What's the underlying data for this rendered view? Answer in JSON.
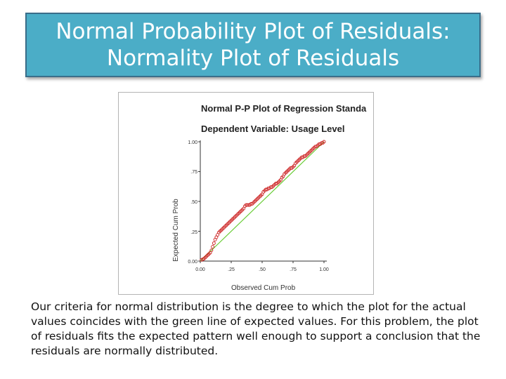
{
  "slide": {
    "title_line1": "Normal Probability Plot of Residuals:",
    "title_line2": "Normality Plot of Residuals",
    "caption": "Our criteria for normal distribution is the degree to which the plot for the actual values coincides with the green line of expected values. For this problem, the plot of residuals fits the expected pattern well enough to support a conclusion that the residuals are normally distributed."
  },
  "colors": {
    "title_bg": "#4badc7",
    "points": "#cc2222",
    "reference_line": "#66cc33"
  },
  "chart_data": {
    "type": "scatter",
    "title": "Normal P-P Plot of Regression Standa",
    "subtitle": "Dependent Variable: Usage Level",
    "xlabel": "Observed Cum Prob",
    "ylabel": "Expected Cum Prob",
    "xlim": [
      0,
      1
    ],
    "ylim": [
      0,
      1
    ],
    "xticks": [
      "0.00",
      ".25",
      ".50",
      ".75",
      "1.00"
    ],
    "yticks": [
      "0.00",
      ".25",
      ".50",
      ".75",
      "1.00"
    ],
    "grid": false,
    "reference_line": {
      "from": [
        0,
        0
      ],
      "to": [
        1,
        1
      ],
      "label": "expected values"
    },
    "series": [
      {
        "name": "Residuals",
        "points": [
          [
            0.01,
            0.01
          ],
          [
            0.02,
            0.015
          ],
          [
            0.03,
            0.02
          ],
          [
            0.04,
            0.03
          ],
          [
            0.05,
            0.04
          ],
          [
            0.06,
            0.05
          ],
          [
            0.07,
            0.06
          ],
          [
            0.08,
            0.07
          ],
          [
            0.09,
            0.09
          ],
          [
            0.1,
            0.12
          ],
          [
            0.11,
            0.15
          ],
          [
            0.12,
            0.18
          ],
          [
            0.13,
            0.2
          ],
          [
            0.14,
            0.22
          ],
          [
            0.15,
            0.24
          ],
          [
            0.16,
            0.25
          ],
          [
            0.17,
            0.26
          ],
          [
            0.18,
            0.27
          ],
          [
            0.19,
            0.28
          ],
          [
            0.2,
            0.29
          ],
          [
            0.21,
            0.3
          ],
          [
            0.22,
            0.31
          ],
          [
            0.23,
            0.32
          ],
          [
            0.24,
            0.33
          ],
          [
            0.25,
            0.34
          ],
          [
            0.26,
            0.35
          ],
          [
            0.27,
            0.36
          ],
          [
            0.28,
            0.37
          ],
          [
            0.29,
            0.38
          ],
          [
            0.3,
            0.39
          ],
          [
            0.31,
            0.4
          ],
          [
            0.32,
            0.41
          ],
          [
            0.33,
            0.42
          ],
          [
            0.34,
            0.43
          ],
          [
            0.35,
            0.44
          ],
          [
            0.36,
            0.46
          ],
          [
            0.37,
            0.47
          ],
          [
            0.38,
            0.47
          ],
          [
            0.39,
            0.47
          ],
          [
            0.4,
            0.47
          ],
          [
            0.41,
            0.48
          ],
          [
            0.42,
            0.48
          ],
          [
            0.43,
            0.49
          ],
          [
            0.44,
            0.5
          ],
          [
            0.45,
            0.51
          ],
          [
            0.46,
            0.52
          ],
          [
            0.47,
            0.53
          ],
          [
            0.48,
            0.54
          ],
          [
            0.49,
            0.55
          ],
          [
            0.5,
            0.56
          ],
          [
            0.51,
            0.58
          ],
          [
            0.52,
            0.59
          ],
          [
            0.53,
            0.6
          ],
          [
            0.54,
            0.6
          ],
          [
            0.55,
            0.61
          ],
          [
            0.56,
            0.61
          ],
          [
            0.57,
            0.62
          ],
          [
            0.58,
            0.62
          ],
          [
            0.59,
            0.63
          ],
          [
            0.6,
            0.64
          ],
          [
            0.61,
            0.65
          ],
          [
            0.62,
            0.65
          ],
          [
            0.63,
            0.66
          ],
          [
            0.64,
            0.67
          ],
          [
            0.65,
            0.68
          ],
          [
            0.66,
            0.7
          ],
          [
            0.67,
            0.71
          ],
          [
            0.68,
            0.73
          ],
          [
            0.69,
            0.74
          ],
          [
            0.7,
            0.75
          ],
          [
            0.71,
            0.76
          ],
          [
            0.72,
            0.77
          ],
          [
            0.73,
            0.78
          ],
          [
            0.74,
            0.78
          ],
          [
            0.75,
            0.79
          ],
          [
            0.76,
            0.8
          ],
          [
            0.77,
            0.82
          ],
          [
            0.78,
            0.83
          ],
          [
            0.79,
            0.84
          ],
          [
            0.8,
            0.85
          ],
          [
            0.81,
            0.86
          ],
          [
            0.82,
            0.87
          ],
          [
            0.83,
            0.87
          ],
          [
            0.84,
            0.88
          ],
          [
            0.85,
            0.88
          ],
          [
            0.86,
            0.89
          ],
          [
            0.87,
            0.9
          ],
          [
            0.88,
            0.91
          ],
          [
            0.89,
            0.92
          ],
          [
            0.9,
            0.93
          ],
          [
            0.91,
            0.94
          ],
          [
            0.92,
            0.95
          ],
          [
            0.93,
            0.96
          ],
          [
            0.94,
            0.96
          ],
          [
            0.95,
            0.97
          ],
          [
            0.96,
            0.98
          ],
          [
            0.97,
            0.98
          ],
          [
            0.98,
            0.99
          ],
          [
            0.99,
            0.99
          ],
          [
            1.0,
            1.0
          ]
        ]
      }
    ]
  }
}
